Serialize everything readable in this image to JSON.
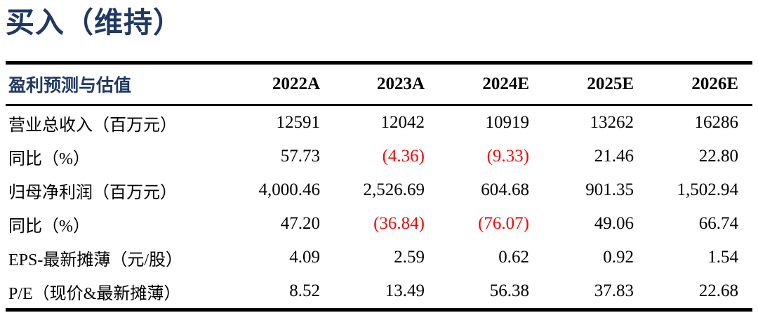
{
  "page": {
    "rating_title": "买入（维持）"
  },
  "colors": {
    "accent_navy": "#1F3864",
    "negative_red": "#FF0000",
    "rule_black": "#000000"
  },
  "table": {
    "header": {
      "label": "盈利预测与估值",
      "columns": [
        "2022A",
        "2023A",
        "2024E",
        "2025E",
        "2026E"
      ]
    },
    "rows": [
      {
        "label": "营业总收入（百万元）",
        "values": [
          "12591",
          "12042",
          "10919",
          "13262",
          "16286"
        ]
      },
      {
        "label": "同比（%）",
        "values": [
          "57.73",
          "(4.36)",
          "(9.33)",
          "21.46",
          "22.80"
        ]
      },
      {
        "label": "归母净利润（百万元）",
        "values": [
          "4,000.46",
          "2,526.69",
          "604.68",
          "901.35",
          "1,502.94"
        ]
      },
      {
        "label": "同比（%）",
        "values": [
          "47.20",
          "(36.84)",
          "(76.07)",
          "49.06",
          "66.74"
        ]
      },
      {
        "label": "EPS-最新摊薄（元/股）",
        "values": [
          "4.09",
          "2.59",
          "0.62",
          "0.92",
          "1.54"
        ]
      },
      {
        "label": "P/E（现价&最新摊薄）",
        "values": [
          "8.52",
          "13.49",
          "56.38",
          "37.83",
          "22.68"
        ]
      }
    ]
  }
}
